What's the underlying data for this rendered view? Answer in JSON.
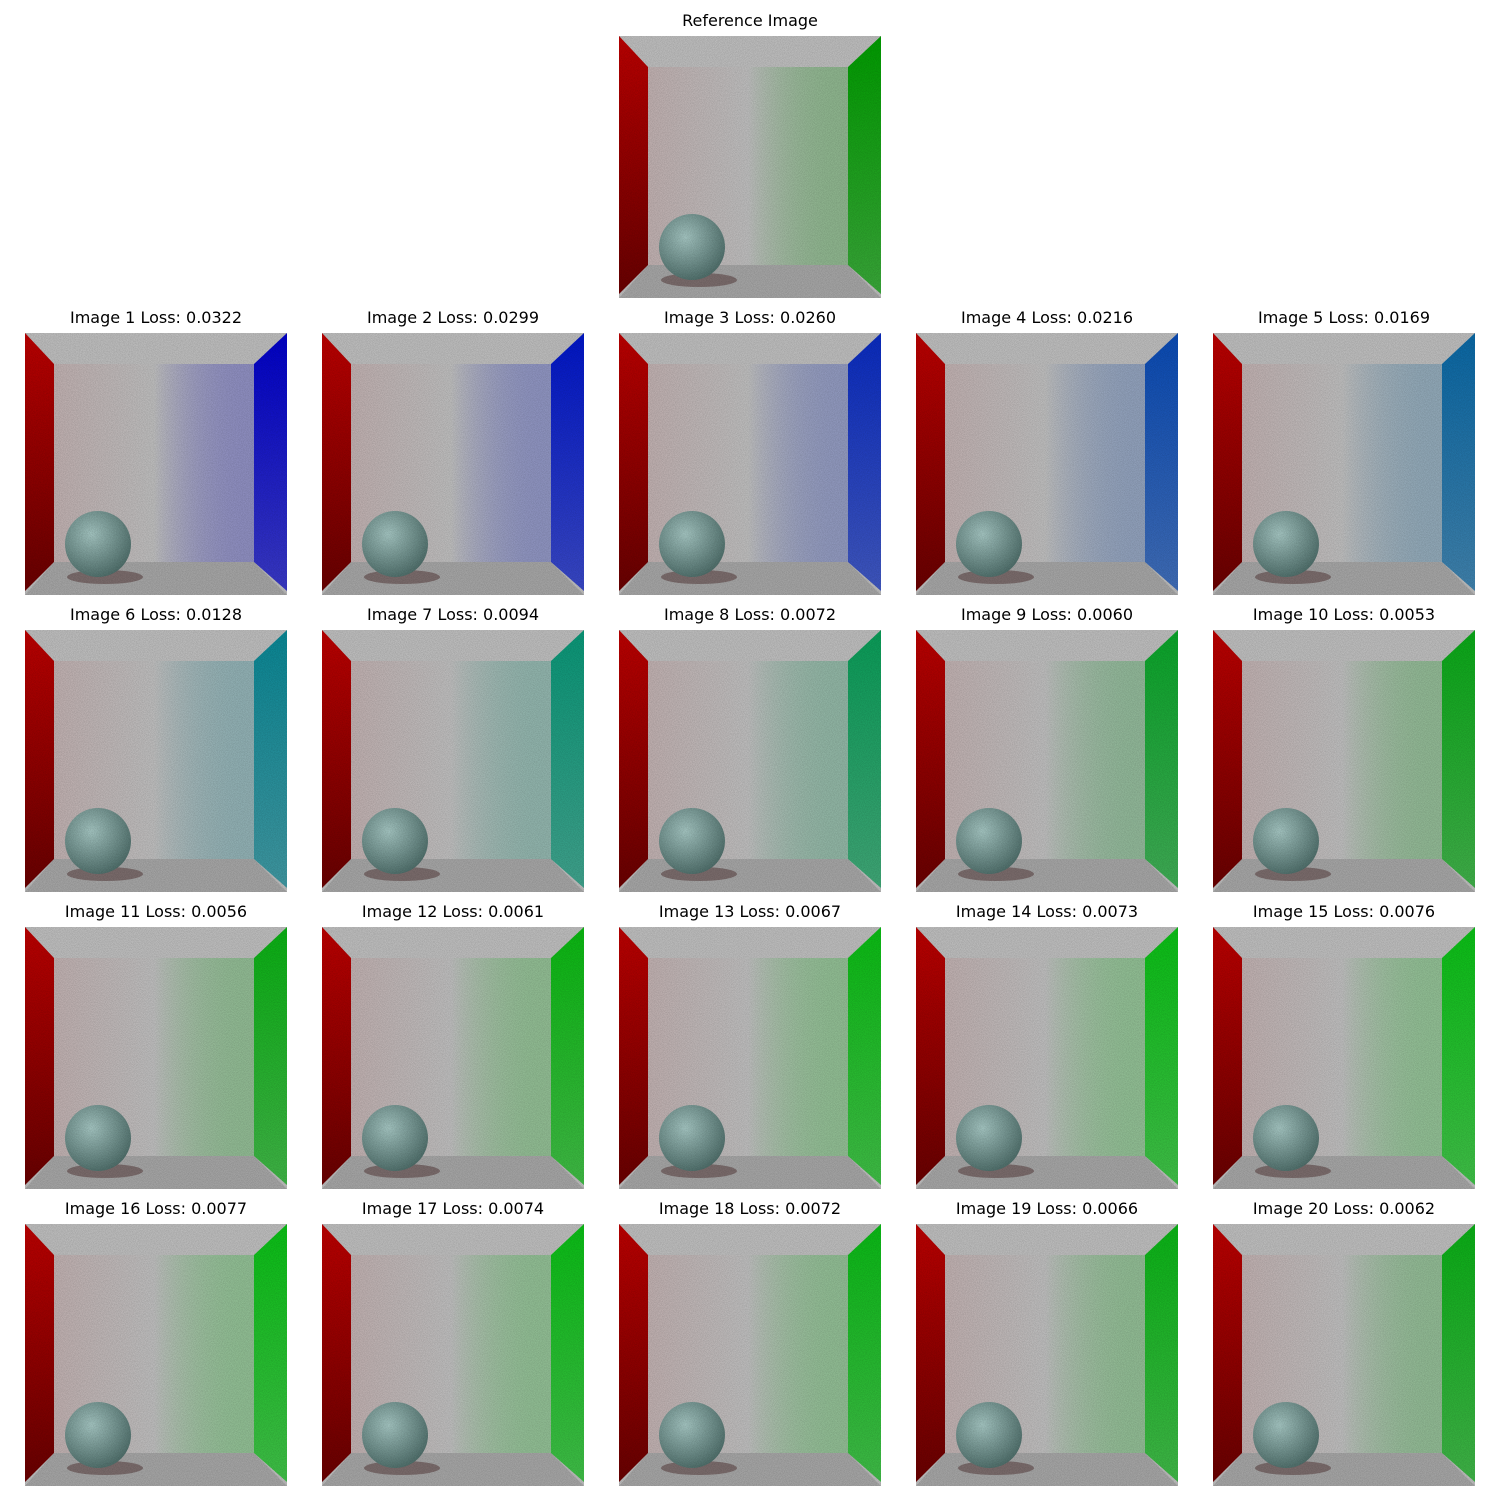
{
  "reference": {
    "title": "Reference Image",
    "wall_color": "#00a000"
  },
  "colors": {
    "left_wall": "#c00000",
    "back_wall": "#c2c2c2",
    "floor": "#a9a9a9",
    "sphere": "#7aa8a4"
  },
  "images": [
    {
      "title": "Image 1 Loss: 0.0322",
      "wall_color": "#0000cc"
    },
    {
      "title": "Image 2 Loss: 0.0299",
      "wall_color": "#0016cc"
    },
    {
      "title": "Image 3 Loss: 0.0260",
      "wall_color": "#0a2cc4"
    },
    {
      "title": "Image 4 Loss: 0.0216",
      "wall_color": "#0a4cb8"
    },
    {
      "title": "Image 5 Loss: 0.0169",
      "wall_color": "#0a6aa8"
    },
    {
      "title": "Image 6 Loss: 0.0128",
      "wall_color": "#0a8a98"
    },
    {
      "title": "Image 7 Loss: 0.0094",
      "wall_color": "#0a9a7a"
    },
    {
      "title": "Image 8 Loss: 0.0072",
      "wall_color": "#0aa05a"
    },
    {
      "title": "Image 9 Loss: 0.0060",
      "wall_color": "#0aa82a"
    },
    {
      "title": "Image 10 Loss: 0.0053",
      "wall_color": "#0aac18"
    },
    {
      "title": "Image 11 Loss: 0.0056",
      "wall_color": "#0ab414"
    },
    {
      "title": "Image 12 Loss: 0.0061",
      "wall_color": "#0abc12"
    },
    {
      "title": "Image 13 Loss: 0.0067",
      "wall_color": "#0ac014"
    },
    {
      "title": "Image 14 Loss: 0.0073",
      "wall_color": "#0ac416"
    },
    {
      "title": "Image 15 Loss: 0.0076",
      "wall_color": "#0ac416"
    },
    {
      "title": "Image 16 Loss: 0.0077",
      "wall_color": "#0ac416"
    },
    {
      "title": "Image 17 Loss: 0.0074",
      "wall_color": "#0ac216"
    },
    {
      "title": "Image 18 Loss: 0.0072",
      "wall_color": "#0abe16"
    },
    {
      "title": "Image 19 Loss: 0.0066",
      "wall_color": "#0ab816"
    },
    {
      "title": "Image 20 Loss: 0.0062",
      "wall_color": "#0ab216"
    }
  ]
}
